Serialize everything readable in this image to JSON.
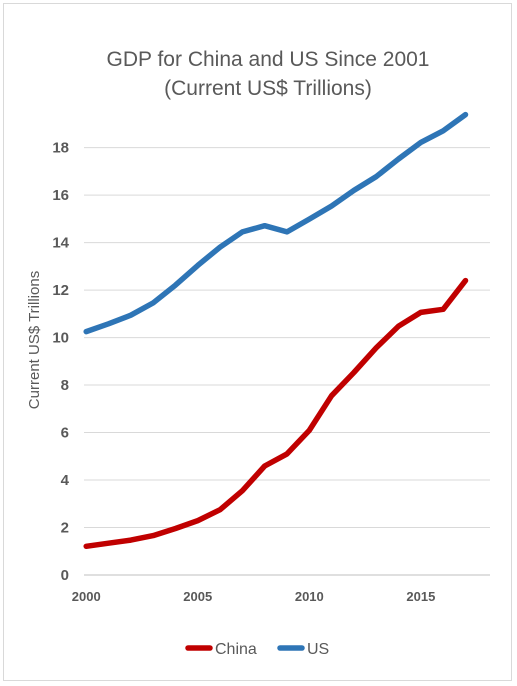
{
  "chart_data": {
    "type": "line",
    "title": "GDP for China and US Since 2001",
    "subtitle": "(Current US$ Trillions)",
    "xlabel": "",
    "ylabel": "Current US$ Trillions",
    "xlim": [
      1999.9,
      2018.1
    ],
    "ylim": [
      0,
      19.5
    ],
    "yticks": [
      0,
      2,
      4,
      6,
      8,
      10,
      12,
      14,
      16,
      18
    ],
    "xticks": [
      2000,
      2005,
      2010,
      2015
    ],
    "grid": true,
    "legend_position": "bottom",
    "x": [
      2000,
      2001,
      2002,
      2003,
      2004,
      2005,
      2006,
      2007,
      2008,
      2009,
      2010,
      2011,
      2012,
      2013,
      2014,
      2015,
      2016,
      2017
    ],
    "series": [
      {
        "name": "China",
        "color": "#c00000",
        "values": [
          1.21,
          1.34,
          1.47,
          1.66,
          1.96,
          2.29,
          2.75,
          3.55,
          4.59,
          5.1,
          6.09,
          7.55,
          8.53,
          9.57,
          10.48,
          11.06,
          11.19,
          12.4
        ]
      },
      {
        "name": "US",
        "color": "#2e75b6",
        "values": [
          10.25,
          10.58,
          10.94,
          11.46,
          12.21,
          13.04,
          13.81,
          14.45,
          14.71,
          14.45,
          14.99,
          15.54,
          16.2,
          16.78,
          17.52,
          18.22,
          18.71,
          19.39
        ]
      }
    ]
  }
}
